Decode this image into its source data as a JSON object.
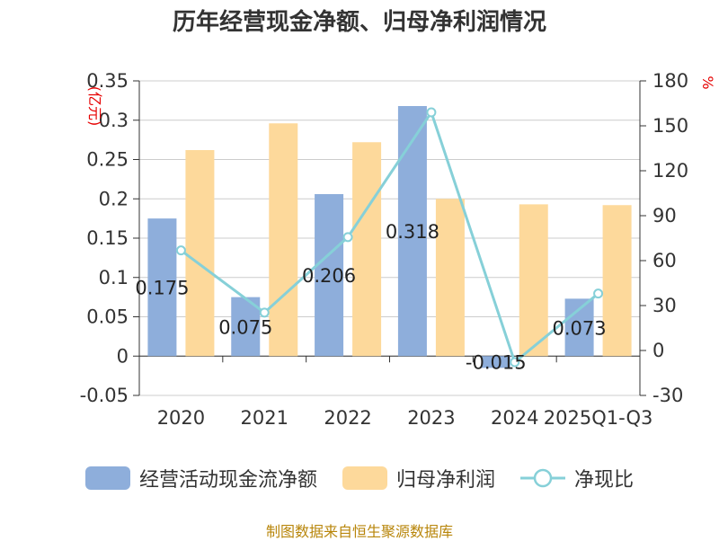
{
  "chart_data": {
    "type": "bar+line",
    "title": "历年经营现金净额、归母净利润情况",
    "categories": [
      "2020",
      "2021",
      "2022",
      "2023",
      "2024",
      "2025Q1-Q3"
    ],
    "series": [
      {
        "name": "经营活动现金流净额",
        "axis": "left",
        "type": "bar",
        "color": "#8eaedb",
        "values": [
          0.175,
          0.075,
          0.206,
          0.318,
          -0.015,
          0.073
        ],
        "labels": [
          "0.175",
          "0.075",
          "0.206",
          "0.318",
          "-0.015",
          "0.073"
        ]
      },
      {
        "name": "归母净利润",
        "axis": "left",
        "type": "bar",
        "color": "#fdd99b",
        "values": [
          0.262,
          0.296,
          0.272,
          0.2,
          0.193,
          0.192
        ]
      },
      {
        "name": "净现比",
        "axis": "right",
        "type": "line",
        "color": "#86d0d8",
        "values": [
          66.8,
          25.3,
          75.7,
          159.0,
          -7.8,
          38.0
        ]
      }
    ],
    "left_axis": {
      "label": "(亿元)",
      "min": -0.05,
      "max": 0.35,
      "ticks": [
        -0.05,
        0,
        0.05,
        0.1,
        0.15,
        0.2,
        0.25,
        0.3,
        0.35
      ],
      "tick_labels": [
        "-0.05",
        "0",
        "0.05",
        "0.1",
        "0.15",
        "0.2",
        "0.25",
        "0.3",
        "0.35"
      ]
    },
    "right_axis": {
      "label": "%",
      "min": -30,
      "max": 180,
      "ticks": [
        -30,
        0,
        30,
        60,
        90,
        120,
        150,
        180
      ],
      "tick_labels": [
        "-30",
        "0",
        "30",
        "60",
        "90",
        "120",
        "150",
        "180"
      ]
    },
    "grid": true,
    "legend_position": "bottom"
  },
  "source": "制图数据来自恒生聚源数据库"
}
